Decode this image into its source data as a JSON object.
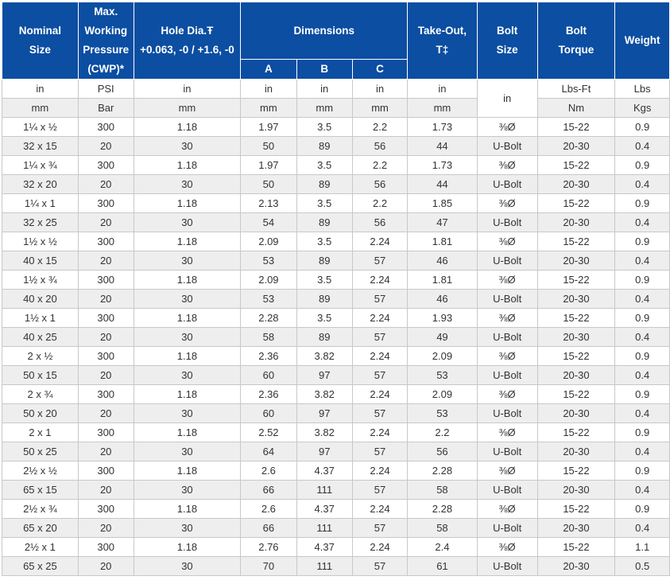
{
  "header": {
    "nominal_size": "Nominal Size",
    "max_working_pressure": [
      "Max.",
      "Working",
      "Pressure",
      "(CWP)*"
    ],
    "hole_dia": "Hole Dia.Ŧ",
    "hole_tol": "+0.063, -0 / +1.6, -0",
    "dimensions": "Dimensions",
    "dim_a": "A",
    "dim_b": "B",
    "dim_c": "C",
    "take_out": "Take-Out, T‡",
    "bolt_size": "Bolt Size",
    "bolt_torque": "Bolt Torque",
    "weight": "Weight"
  },
  "units": {
    "imperial": [
      "in",
      "PSI",
      "in",
      "in",
      "in",
      "in",
      "in",
      "in",
      "Lbs-Ft",
      "Lbs"
    ],
    "metric": [
      "mm",
      "Bar",
      "mm",
      "mm",
      "mm",
      "mm",
      "mm",
      "Nm",
      "Kgs"
    ]
  },
  "rows": [
    [
      "1¼ x ½",
      "300",
      "1.18",
      "1.97",
      "3.5",
      "2.2",
      "1.73",
      "⅜Ø",
      "15-22",
      "0.9"
    ],
    [
      "32 x 15",
      "20",
      "30",
      "50",
      "89",
      "56",
      "44",
      "U-Bolt",
      "20-30",
      "0.4"
    ],
    [
      "1¼ x ¾",
      "300",
      "1.18",
      "1.97",
      "3.5",
      "2.2",
      "1.73",
      "⅜Ø",
      "15-22",
      "0.9"
    ],
    [
      "32 x 20",
      "20",
      "30",
      "50",
      "89",
      "56",
      "44",
      "U-Bolt",
      "20-30",
      "0.4"
    ],
    [
      "1¼ x 1",
      "300",
      "1.18",
      "2.13",
      "3.5",
      "2.2",
      "1.85",
      "⅜Ø",
      "15-22",
      "0.9"
    ],
    [
      "32 x 25",
      "20",
      "30",
      "54",
      "89",
      "56",
      "47",
      "U-Bolt",
      "20-30",
      "0.4"
    ],
    [
      "1½ x ½",
      "300",
      "1.18",
      "2.09",
      "3.5",
      "2.24",
      "1.81",
      "⅜Ø",
      "15-22",
      "0.9"
    ],
    [
      "40 x 15",
      "20",
      "30",
      "53",
      "89",
      "57",
      "46",
      "U-Bolt",
      "20-30",
      "0.4"
    ],
    [
      "1½ x ¾",
      "300",
      "1.18",
      "2.09",
      "3.5",
      "2.24",
      "1.81",
      "⅜Ø",
      "15-22",
      "0.9"
    ],
    [
      "40 x 20",
      "20",
      "30",
      "53",
      "89",
      "57",
      "46",
      "U-Bolt",
      "20-30",
      "0.4"
    ],
    [
      "1½ x 1",
      "300",
      "1.18",
      "2.28",
      "3.5",
      "2.24",
      "1.93",
      "⅜Ø",
      "15-22",
      "0.9"
    ],
    [
      "40 x 25",
      "20",
      "30",
      "58",
      "89",
      "57",
      "49",
      "U-Bolt",
      "20-30",
      "0.4"
    ],
    [
      "2 x ½",
      "300",
      "1.18",
      "2.36",
      "3.82",
      "2.24",
      "2.09",
      "⅜Ø",
      "15-22",
      "0.9"
    ],
    [
      "50 x 15",
      "20",
      "30",
      "60",
      "97",
      "57",
      "53",
      "U-Bolt",
      "20-30",
      "0.4"
    ],
    [
      "2 x ¾",
      "300",
      "1.18",
      "2.36",
      "3.82",
      "2.24",
      "2.09",
      "⅜Ø",
      "15-22",
      "0.9"
    ],
    [
      "50 x 20",
      "20",
      "30",
      "60",
      "97",
      "57",
      "53",
      "U-Bolt",
      "20-30",
      "0.4"
    ],
    [
      "2 x 1",
      "300",
      "1.18",
      "2.52",
      "3.82",
      "2.24",
      "2.2",
      "⅜Ø",
      "15-22",
      "0.9"
    ],
    [
      "50 x 25",
      "20",
      "30",
      "64",
      "97",
      "57",
      "56",
      "U-Bolt",
      "20-30",
      "0.4"
    ],
    [
      "2½ x ½",
      "300",
      "1.18",
      "2.6",
      "4.37",
      "2.24",
      "2.28",
      "⅜Ø",
      "15-22",
      "0.9"
    ],
    [
      "65 x 15",
      "20",
      "30",
      "66",
      "111",
      "57",
      "58",
      "U-Bolt",
      "20-30",
      "0.4"
    ],
    [
      "2½ x ¾",
      "300",
      "1.18",
      "2.6",
      "4.37",
      "2.24",
      "2.28",
      "⅜Ø",
      "15-22",
      "0.9"
    ],
    [
      "65 x 20",
      "20",
      "30",
      "66",
      "111",
      "57",
      "58",
      "U-Bolt",
      "20-30",
      "0.4"
    ],
    [
      "2½ x 1",
      "300",
      "1.18",
      "2.76",
      "4.37",
      "2.24",
      "2.4",
      "⅜Ø",
      "15-22",
      "1.1"
    ],
    [
      "65 x 25",
      "20",
      "30",
      "70",
      "111",
      "57",
      "61",
      "U-Bolt",
      "20-30",
      "0.5"
    ]
  ]
}
